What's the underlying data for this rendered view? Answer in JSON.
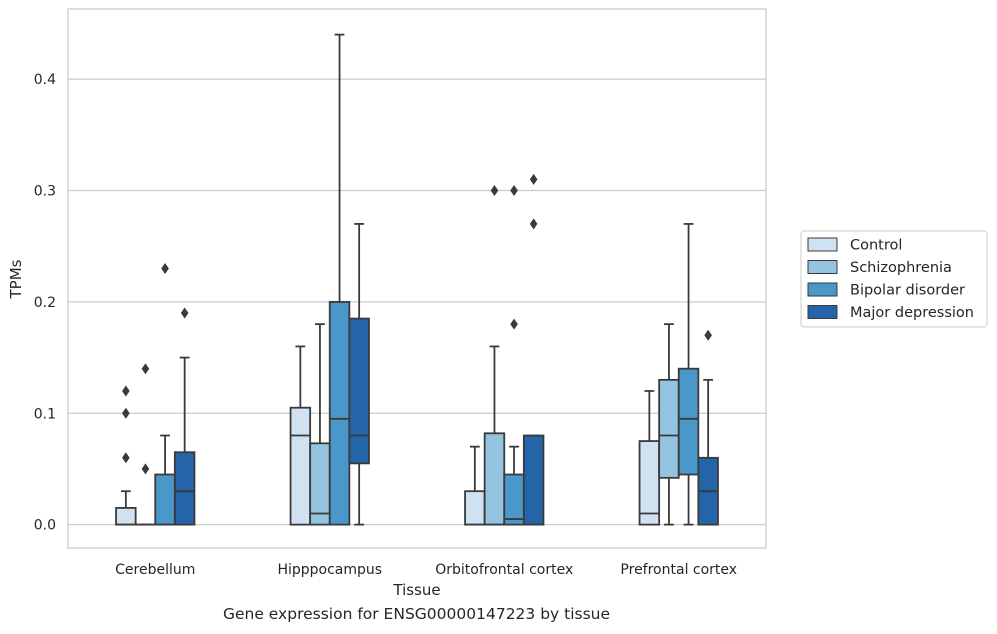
{
  "caption": "Gene expression for ENSG00000147223 by tissue",
  "chart_data": {
    "type": "box",
    "title": "",
    "xlabel": "Tissue",
    "ylabel": "TPMs",
    "ylim": [
      -0.021,
      0.463
    ],
    "yticks": [
      "0.0",
      "0.1",
      "0.2",
      "0.3",
      "0.4"
    ],
    "grid": "horizontal",
    "legend": "right",
    "categories": [
      "Cerebellum",
      "Hipppocampus",
      "Orbitofrontal cortex",
      "Prefrontal cortex"
    ],
    "series": [
      {
        "name": "Control",
        "color": "#d0e1f2",
        "boxes": [
          {
            "q1": 0,
            "median": 0,
            "q3": 0.015,
            "whisker_low": 0,
            "whisker_high": 0.03,
            "outliers": [
              0.06,
              0.1,
              0.12
            ]
          },
          {
            "q1": 0,
            "median": 0.08,
            "q3": 0.105,
            "whisker_low": 0,
            "whisker_high": 0.16,
            "outliers": []
          },
          {
            "q1": 0,
            "median": 0,
            "q3": 0.03,
            "whisker_low": 0,
            "whisker_high": 0.07,
            "outliers": []
          },
          {
            "q1": 0,
            "median": 0.01,
            "q3": 0.075,
            "whisker_low": 0,
            "whisker_high": 0.12,
            "outliers": []
          }
        ]
      },
      {
        "name": "Schizophrenia",
        "color": "#94c4df",
        "boxes": [
          {
            "q1": 0,
            "median": 0,
            "q3": 0,
            "whisker_low": 0,
            "whisker_high": 0,
            "outliers": [
              0.05,
              0.14
            ]
          },
          {
            "q1": 0,
            "median": 0.01,
            "q3": 0.073,
            "whisker_low": 0,
            "whisker_high": 0.18,
            "outliers": []
          },
          {
            "q1": 0,
            "median": 0,
            "q3": 0.082,
            "whisker_low": 0,
            "whisker_high": 0.16,
            "outliers": [
              0.3
            ]
          },
          {
            "q1": 0.042,
            "median": 0.08,
            "q3": 0.13,
            "whisker_low": 0,
            "whisker_high": 0.18,
            "outliers": []
          }
        ]
      },
      {
        "name": "Bipolar disorder",
        "color": "#4a98c9",
        "boxes": [
          {
            "q1": 0,
            "median": 0,
            "q3": 0.045,
            "whisker_low": 0,
            "whisker_high": 0.08,
            "outliers": [
              0.23
            ]
          },
          {
            "q1": 0,
            "median": 0.095,
            "q3": 0.2,
            "whisker_low": 0,
            "whisker_high": 0.44,
            "outliers": []
          },
          {
            "q1": 0,
            "median": 0.005,
            "q3": 0.045,
            "whisker_low": 0,
            "whisker_high": 0.07,
            "outliers": [
              0.18,
              0.3
            ]
          },
          {
            "q1": 0.045,
            "median": 0.095,
            "q3": 0.14,
            "whisker_low": 0,
            "whisker_high": 0.27,
            "outliers": []
          }
        ]
      },
      {
        "name": "Major depression",
        "color": "#2464a8",
        "boxes": [
          {
            "q1": 0,
            "median": 0.03,
            "q3": 0.065,
            "whisker_low": 0,
            "whisker_high": 0.15,
            "outliers": [
              0.19
            ]
          },
          {
            "q1": 0.055,
            "median": 0.08,
            "q3": 0.185,
            "whisker_low": 0,
            "whisker_high": 0.27,
            "outliers": []
          },
          {
            "q1": 0,
            "median": 0,
            "q3": 0.08,
            "whisker_low": 0,
            "whisker_high": 0.08,
            "outliers": [
              0.27,
              0.31
            ]
          },
          {
            "q1": 0,
            "median": 0.03,
            "q3": 0.06,
            "whisker_low": 0,
            "whisker_high": 0.13,
            "outliers": [
              0.17
            ]
          }
        ]
      }
    ]
  }
}
